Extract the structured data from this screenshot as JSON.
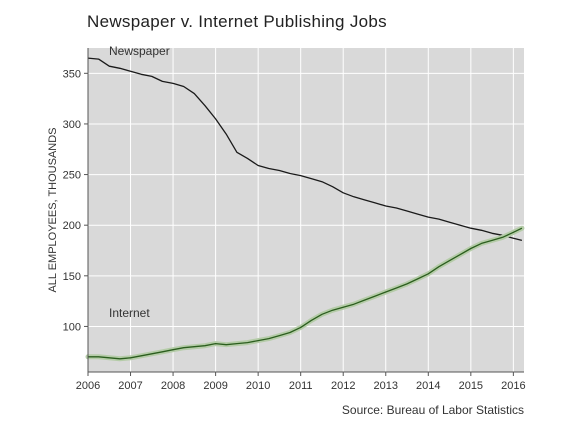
{
  "chart_data": {
    "type": "line",
    "title": "Newspaper v. Internet Publishing Jobs",
    "ylabel": "ALL EMPLOYEES, THOUSANDS",
    "xlabel": "",
    "source": "Source: Bureau of Labor Statistics",
    "xlim": [
      2006.0,
      2016.25
    ],
    "ylim": [
      55,
      375
    ],
    "x_ticks": [
      {
        "value": 2006,
        "label": "2006"
      },
      {
        "value": 2007,
        "label": "2007"
      },
      {
        "value": 2008,
        "label": "2008"
      },
      {
        "value": 2009,
        "label": "2009"
      },
      {
        "value": 2010,
        "label": "2010"
      },
      {
        "value": 2011,
        "label": "2011"
      },
      {
        "value": 2012,
        "label": "2012"
      },
      {
        "value": 2013,
        "label": "2013"
      },
      {
        "value": 2014,
        "label": "2014"
      },
      {
        "value": 2015,
        "label": "2015"
      },
      {
        "value": 2016,
        "label": "2016"
      }
    ],
    "y_ticks": [
      {
        "value": 100,
        "label": "100"
      },
      {
        "value": 150,
        "label": "150"
      },
      {
        "value": 200,
        "label": "200"
      },
      {
        "value": 250,
        "label": "250"
      },
      {
        "value": 300,
        "label": "300"
      },
      {
        "value": 350,
        "label": "350"
      }
    ],
    "grid": true,
    "background": "#d9d9d9",
    "series": [
      {
        "name": "Newspaper",
        "color": "#1a1a1a",
        "points": [
          [
            2006.0,
            365
          ],
          [
            2006.25,
            364
          ],
          [
            2006.5,
            357
          ],
          [
            2006.75,
            355
          ],
          [
            2007.0,
            352
          ],
          [
            2007.25,
            349
          ],
          [
            2007.5,
            347
          ],
          [
            2007.75,
            342
          ],
          [
            2008.0,
            340
          ],
          [
            2008.25,
            337
          ],
          [
            2008.5,
            330
          ],
          [
            2008.75,
            318
          ],
          [
            2009.0,
            305
          ],
          [
            2009.25,
            290
          ],
          [
            2009.5,
            272
          ],
          [
            2009.75,
            266
          ],
          [
            2010.0,
            259
          ],
          [
            2010.25,
            256
          ],
          [
            2010.5,
            254
          ],
          [
            2010.75,
            251
          ],
          [
            2011.0,
            249
          ],
          [
            2011.25,
            246
          ],
          [
            2011.5,
            243
          ],
          [
            2011.75,
            238
          ],
          [
            2012.0,
            232
          ],
          [
            2012.25,
            228
          ],
          [
            2012.5,
            225
          ],
          [
            2012.75,
            222
          ],
          [
            2013.0,
            219
          ],
          [
            2013.25,
            217
          ],
          [
            2013.5,
            214
          ],
          [
            2013.75,
            211
          ],
          [
            2014.0,
            208
          ],
          [
            2014.25,
            206
          ],
          [
            2014.5,
            203
          ],
          [
            2014.75,
            200
          ],
          [
            2015.0,
            197
          ],
          [
            2015.25,
            195
          ],
          [
            2015.5,
            192
          ],
          [
            2015.75,
            190
          ],
          [
            2016.0,
            187
          ],
          [
            2016.2,
            185
          ]
        ]
      },
      {
        "name": "Internet",
        "color": "#2b5e1e",
        "band_color": "#b5cca8",
        "points": [
          [
            2006.0,
            70
          ],
          [
            2006.25,
            70
          ],
          [
            2006.5,
            69
          ],
          [
            2006.75,
            68
          ],
          [
            2007.0,
            69
          ],
          [
            2007.25,
            71
          ],
          [
            2007.5,
            73
          ],
          [
            2007.75,
            75
          ],
          [
            2008.0,
            77
          ],
          [
            2008.25,
            79
          ],
          [
            2008.5,
            80
          ],
          [
            2008.75,
            81
          ],
          [
            2009.0,
            83
          ],
          [
            2009.25,
            82
          ],
          [
            2009.5,
            83
          ],
          [
            2009.75,
            84
          ],
          [
            2010.0,
            86
          ],
          [
            2010.25,
            88
          ],
          [
            2010.5,
            91
          ],
          [
            2010.75,
            94
          ],
          [
            2011.0,
            99
          ],
          [
            2011.25,
            106
          ],
          [
            2011.5,
            112
          ],
          [
            2011.75,
            116
          ],
          [
            2012.0,
            119
          ],
          [
            2012.25,
            122
          ],
          [
            2012.5,
            126
          ],
          [
            2012.75,
            130
          ],
          [
            2013.0,
            134
          ],
          [
            2013.25,
            138
          ],
          [
            2013.5,
            142
          ],
          [
            2013.75,
            147
          ],
          [
            2014.0,
            152
          ],
          [
            2014.25,
            159
          ],
          [
            2014.5,
            165
          ],
          [
            2014.75,
            171
          ],
          [
            2015.0,
            177
          ],
          [
            2015.25,
            182
          ],
          [
            2015.5,
            185
          ],
          [
            2015.75,
            188
          ],
          [
            2016.0,
            193
          ],
          [
            2016.2,
            197
          ]
        ]
      }
    ],
    "annotations": [
      {
        "text": "Newspaper",
        "series": "Newspaper"
      },
      {
        "text": "Internet",
        "series": "Internet"
      }
    ]
  }
}
